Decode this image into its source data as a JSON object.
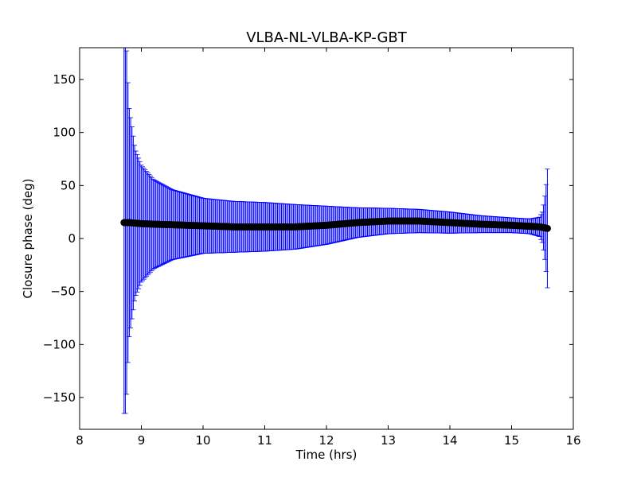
{
  "chart_data": {
    "type": "scatter",
    "title": "VLBA-NL-VLBA-KP-GBT",
    "xlabel": "Time (hrs)",
    "ylabel": "Closure phase (deg)",
    "xlim": [
      8,
      16
    ],
    "ylim": [
      -180,
      180
    ],
    "xticks": [
      8,
      9,
      10,
      11,
      12,
      13,
      14,
      15,
      16
    ],
    "xtick_labels": [
      "8",
      "9",
      "10",
      "11",
      "12",
      "13",
      "14",
      "15",
      "16"
    ],
    "yticks": [
      -150,
      -100,
      -50,
      0,
      50,
      100,
      150
    ],
    "ytick_labels": [
      "−150",
      "−100",
      "−50",
      "0",
      "50",
      "100",
      "150"
    ],
    "grid": false,
    "legend": false,
    "colors": {
      "errorbar": "#0000ff",
      "marker": "#000000",
      "axes": "#000000"
    },
    "series": [
      {
        "x": [
          8.72,
          8.75,
          8.8,
          8.9,
          9.0,
          9.2,
          9.5,
          10.0,
          10.5,
          11.0,
          11.5,
          12.0,
          12.5,
          13.0,
          13.5,
          14.0,
          14.5,
          15.0,
          15.3,
          15.45,
          15.5,
          15.55,
          15.58
        ],
        "y": [
          15,
          15,
          15,
          14.5,
          14,
          13.5,
          13,
          12,
          11,
          11,
          11,
          12.5,
          15,
          16.5,
          16.5,
          15,
          13.5,
          12.5,
          11.5,
          11,
          10.5,
          10,
          9.5
        ],
        "err": [
          180,
          180,
          110,
          70,
          55,
          42,
          33,
          26,
          24,
          23,
          21,
          18,
          14,
          12,
          11,
          10,
          8,
          7,
          7,
          9,
          15,
          35,
          56
        ]
      }
    ]
  }
}
